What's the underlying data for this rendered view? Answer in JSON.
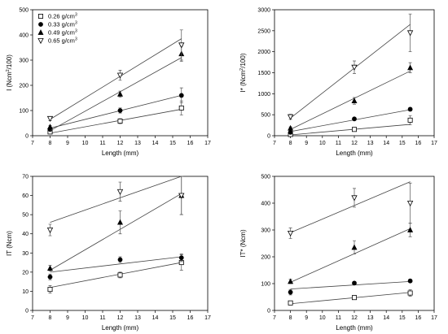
{
  "legend_entries": [
    "0.26 g/cm",
    "0.33 g/cm",
    "0.49 g/cm",
    "0.65 g/cm"
  ],
  "legend_superscript": "3",
  "series_styles": {
    "0.26": {
      "marker": "square-open",
      "color": "#000000"
    },
    "0.33": {
      "marker": "circle-filled",
      "color": "#000000"
    },
    "0.49": {
      "marker": "triangle-up-filled",
      "color": "#000000"
    },
    "0.65": {
      "marker": "triangle-down-open",
      "color": "#000000"
    }
  },
  "chart_data": [
    {
      "type": "scatter",
      "xlabel": "Length (mm)",
      "ylabel_main": "I (Ncm",
      "ylabel_sup": "2",
      "ylabel_tail": "/100)",
      "xlim": [
        7,
        17
      ],
      "ylim": [
        0,
        500
      ],
      "xticks": [
        "7",
        "8",
        "9",
        "10",
        "11",
        "12",
        "13",
        "14",
        "15",
        "16",
        "17"
      ],
      "yticks": [
        "0",
        "100",
        "200",
        "300",
        "400",
        "500"
      ],
      "legend": "top-left",
      "series": [
        {
          "key": "0.26",
          "x": [
            8,
            12,
            15.5
          ],
          "y": [
            15,
            58,
            110
          ],
          "err": [
            5,
            10,
            28
          ],
          "fit": [
            [
              8,
              10
            ],
            [
              15.5,
              105
            ]
          ]
        },
        {
          "key": "0.33",
          "x": [
            8,
            12,
            15.5
          ],
          "y": [
            25,
            100,
            160
          ],
          "err": [
            5,
            10,
            30
          ],
          "fit": [
            [
              8,
              30
            ],
            [
              15.5,
              160
            ]
          ]
        },
        {
          "key": "0.49",
          "x": [
            8,
            12,
            15.5
          ],
          "y": [
            35,
            165,
            325
          ],
          "err": [
            6,
            12,
            30
          ],
          "fit": [
            [
              8,
              20
            ],
            [
              15.5,
              310
            ]
          ]
        },
        {
          "key": "0.65",
          "x": [
            8,
            12,
            15.5
          ],
          "y": [
            68,
            240,
            360
          ],
          "err": [
            8,
            20,
            60
          ],
          "fit": [
            [
              8,
              65
            ],
            [
              15.5,
              385
            ]
          ]
        }
      ]
    },
    {
      "type": "scatter",
      "xlabel": "Length (mm)",
      "ylabel_main": "I* (Ncm",
      "ylabel_sup": "2",
      "ylabel_tail": "/100)",
      "xlim": [
        7,
        17
      ],
      "ylim": [
        0,
        3000
      ],
      "xticks": [
        "7",
        "8",
        "9",
        "10",
        "11",
        "12",
        "13",
        "14",
        "15",
        "16",
        "17"
      ],
      "yticks": [
        "0",
        "500",
        "1000",
        "1500",
        "2000",
        "2500",
        "3000"
      ],
      "legend": "none",
      "series": [
        {
          "key": "0.26",
          "x": [
            8,
            12,
            15.5
          ],
          "y": [
            30,
            150,
            370
          ],
          "err": [
            10,
            20,
            110
          ],
          "fit": [
            [
              8,
              20
            ],
            [
              15.5,
              270
            ]
          ]
        },
        {
          "key": "0.33",
          "x": [
            8,
            12,
            15.5
          ],
          "y": [
            80,
            400,
            630
          ],
          "err": [
            15,
            30,
            40
          ],
          "fit": [
            [
              8,
              100
            ],
            [
              15.5,
              620
            ]
          ]
        },
        {
          "key": "0.49",
          "x": [
            8,
            12,
            15.5
          ],
          "y": [
            180,
            830,
            1620
          ],
          "err": [
            30,
            80,
            120
          ],
          "fit": [
            [
              8,
              150
            ],
            [
              15.5,
              1540
            ]
          ]
        },
        {
          "key": "0.65",
          "x": [
            8,
            12,
            15.5
          ],
          "y": [
            450,
            1630,
            2450
          ],
          "err": [
            60,
            150,
            450
          ],
          "fit": [
            [
              8,
              420
            ],
            [
              15.5,
              2650
            ]
          ]
        }
      ]
    },
    {
      "type": "scatter",
      "xlabel": "Length (mm)",
      "ylabel_main": "IT (Ncm)",
      "ylabel_sup": "",
      "ylabel_tail": "",
      "xlim": [
        7,
        17
      ],
      "ylim": [
        0,
        70
      ],
      "xticks": [
        "7",
        "8",
        "9",
        "10",
        "11",
        "12",
        "13",
        "14",
        "15",
        "16",
        "17"
      ],
      "yticks": [
        "0",
        "10",
        "20",
        "30",
        "40",
        "50",
        "60",
        "70"
      ],
      "legend": "none",
      "series": [
        {
          "key": "0.26",
          "x": [
            8,
            12,
            15.5
          ],
          "y": [
            11,
            18.5,
            25
          ],
          "err": [
            2,
            1.5,
            4
          ],
          "fit": [
            [
              8,
              12
            ],
            [
              15.5,
              25
            ]
          ]
        },
        {
          "key": "0.33",
          "x": [
            8,
            12,
            15.5
          ],
          "y": [
            17.5,
            26.5,
            27.5
          ],
          "err": [
            1.5,
            1.5,
            2
          ],
          "fit": [
            [
              8,
              20
            ],
            [
              15.5,
              28
            ]
          ]
        },
        {
          "key": "0.49",
          "x": [
            8,
            12,
            15.5
          ],
          "y": [
            22,
            46,
            60
          ],
          "err": [
            1.5,
            6,
            10
          ],
          "fit": [
            [
              8,
              21
            ],
            [
              15.5,
              61
            ]
          ]
        },
        {
          "key": "0.65",
          "x": [
            8,
            12,
            15.5
          ],
          "y": [
            42,
            62,
            60
          ],
          "err": [
            3,
            5,
            10
          ],
          "fit": [
            [
              8,
              46
            ],
            [
              15.5,
              70
            ]
          ]
        }
      ]
    },
    {
      "type": "scatter",
      "xlabel": "Length (mm)",
      "ylabel_main": "IT* (Ncm)",
      "ylabel_sup": "",
      "ylabel_tail": "",
      "xlim": [
        7,
        17
      ],
      "ylim": [
        0,
        500
      ],
      "xticks": [
        "7",
        "8",
        "9",
        "10",
        "11",
        "12",
        "13",
        "14",
        "15",
        "16",
        "17"
      ],
      "yticks": [
        "0",
        "100",
        "200",
        "300",
        "400",
        "500"
      ],
      "legend": "none",
      "series": [
        {
          "key": "0.26",
          "x": [
            8,
            12,
            15.5
          ],
          "y": [
            28,
            48,
            65
          ],
          "err": [
            4,
            5,
            12
          ],
          "fit": [
            [
              8,
              25
            ],
            [
              15.5,
              67
            ]
          ]
        },
        {
          "key": "0.33",
          "x": [
            8,
            12,
            15.5
          ],
          "y": [
            68,
            102,
            110
          ],
          "err": [
            10,
            6,
            6
          ],
          "fit": [
            [
              8,
              80
            ],
            [
              15.5,
              108
            ]
          ]
        },
        {
          "key": "0.49",
          "x": [
            8,
            12,
            15.5
          ],
          "y": [
            108,
            235,
            300
          ],
          "err": [
            8,
            25,
            25
          ],
          "fit": [
            [
              8,
              105
            ],
            [
              15.5,
              305
            ]
          ]
        },
        {
          "key": "0.65",
          "x": [
            8,
            12,
            15.5
          ],
          "y": [
            288,
            420,
            400
          ],
          "err": [
            20,
            35,
            75
          ],
          "fit": [
            [
              8,
              290
            ],
            [
              15.5,
              480
            ]
          ]
        }
      ]
    }
  ]
}
